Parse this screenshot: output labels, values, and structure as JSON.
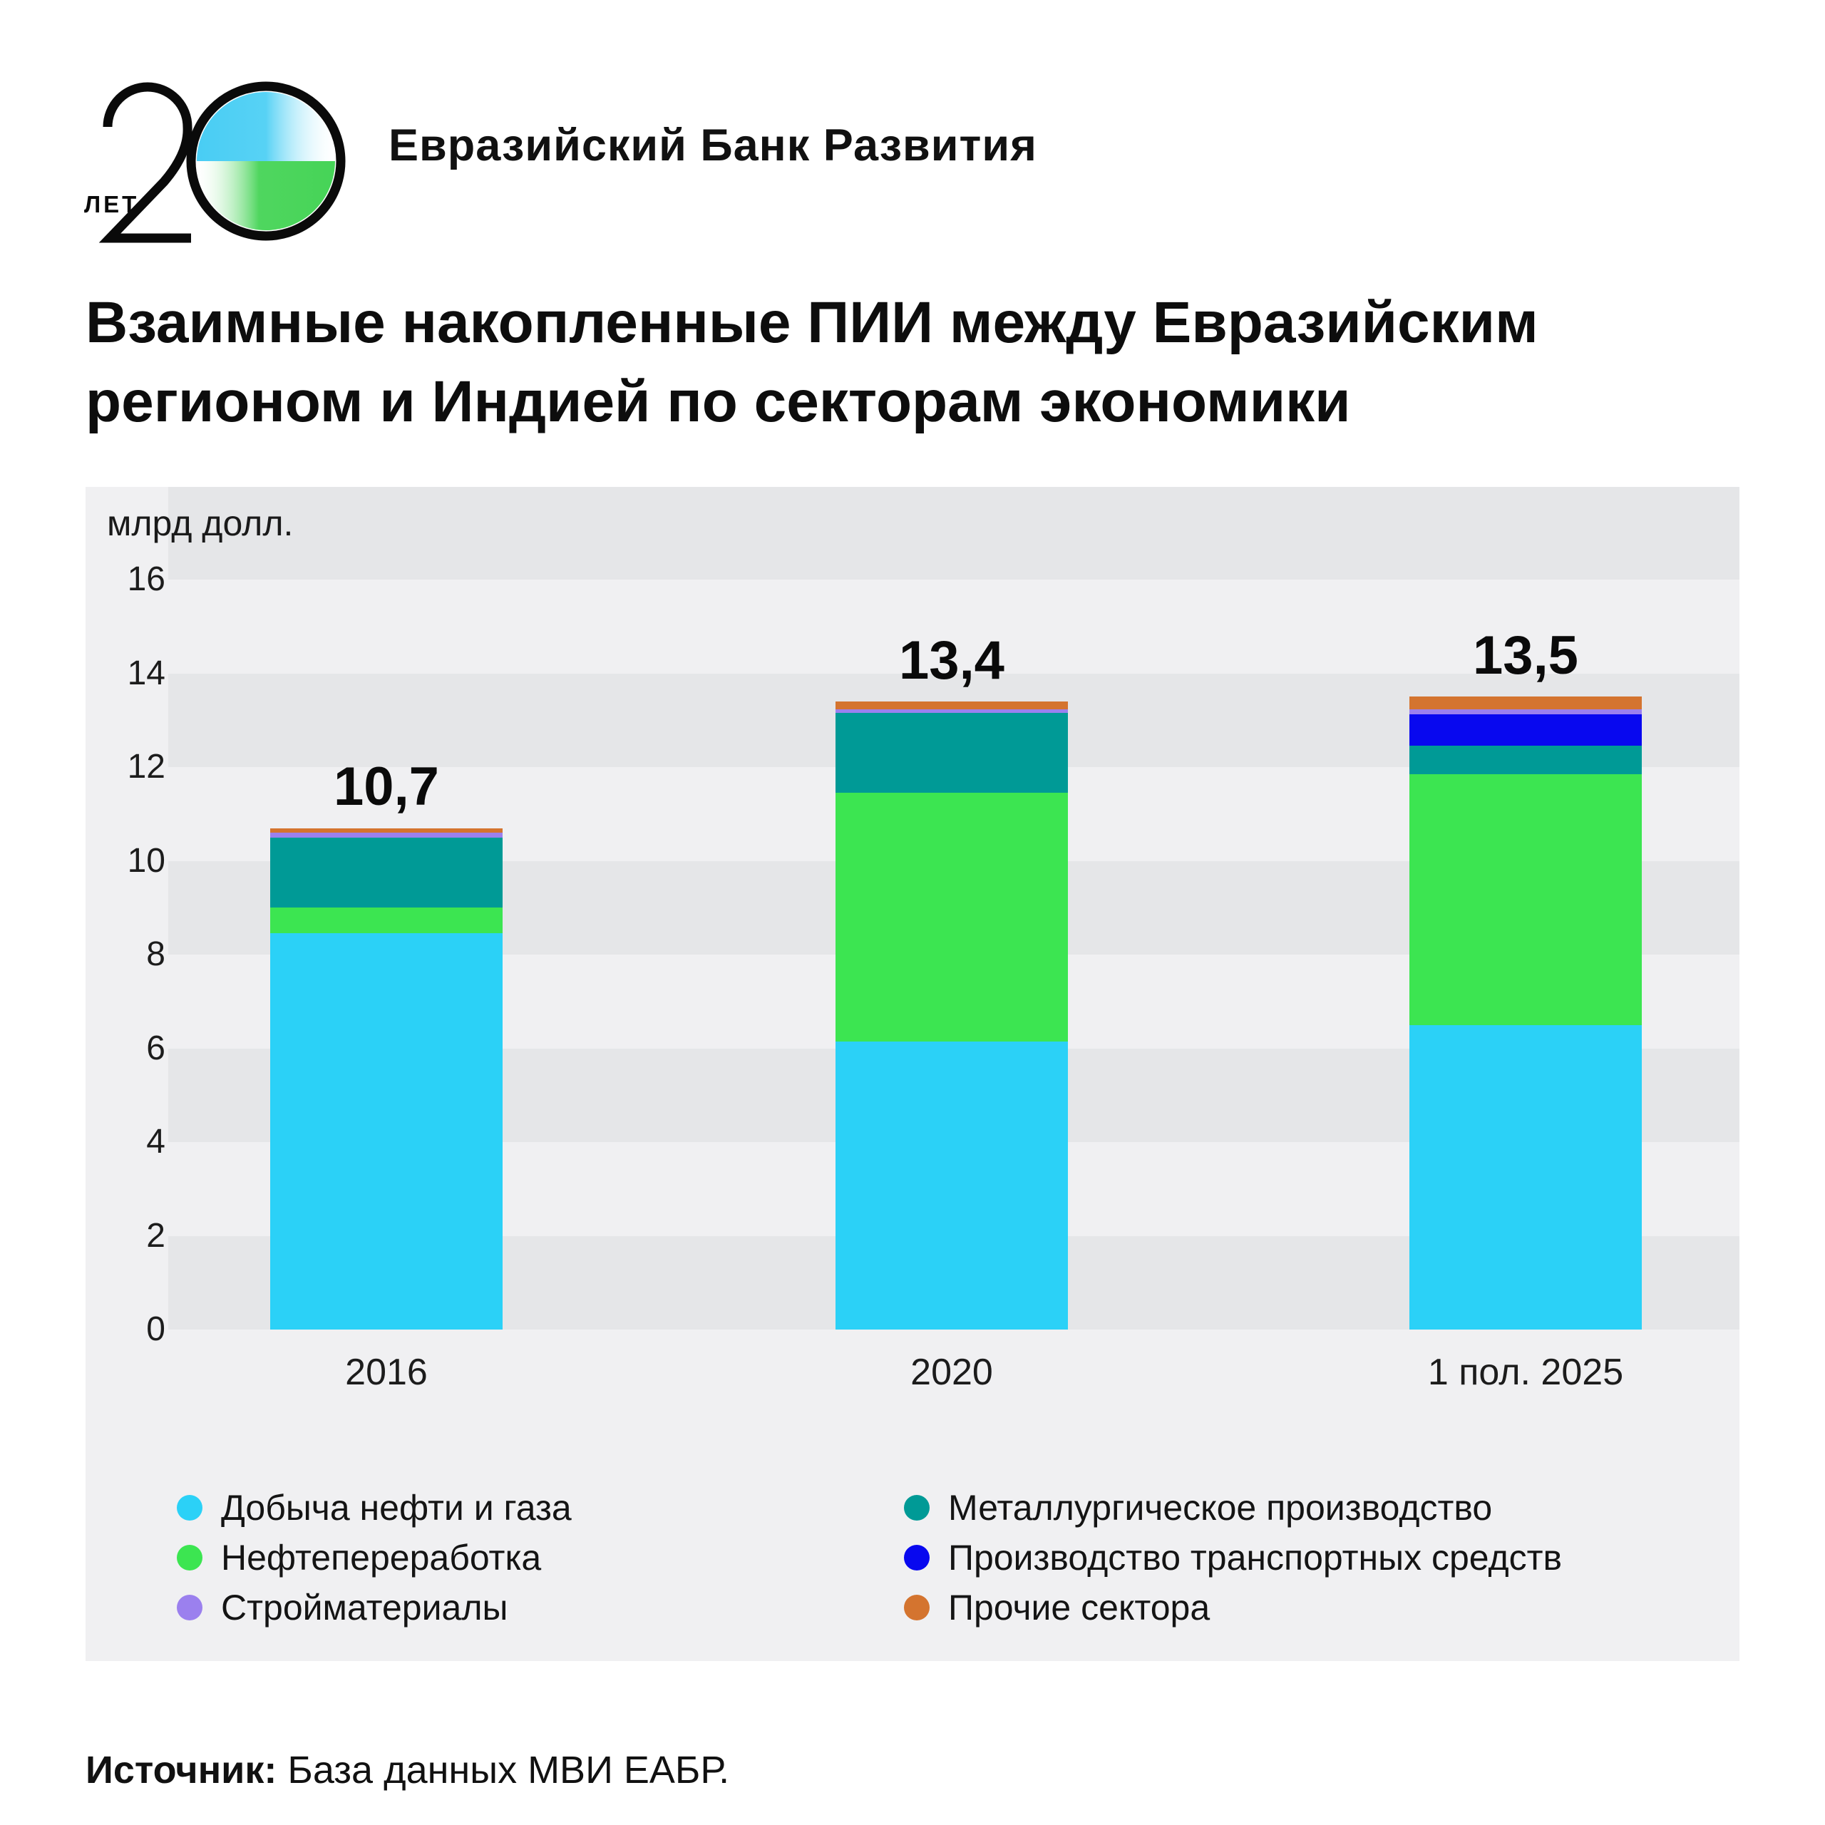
{
  "header": {
    "logo_years_label": "ЛЕТ",
    "bank_name": "Евразийский Банк Развития"
  },
  "title": {
    "line1": "Взаимные накопленные ПИИ между Евразийским",
    "line2": "регионом и Индией по секторам экономики"
  },
  "chart_data": {
    "type": "bar",
    "stacked": true,
    "title": "Взаимные накопленные ПИИ между Евразийским регионом и Индией по секторам экономики",
    "unit_label": "млрд долл.",
    "categories": [
      "2016",
      "2020",
      "1 пол. 2025"
    ],
    "totals": [
      10.7,
      13.4,
      13.5
    ],
    "totals_display": [
      "10,7",
      "13,4",
      "13,5"
    ],
    "y_ticks": [
      16,
      14,
      12,
      10,
      8,
      6,
      4,
      2,
      0
    ],
    "ylim": [
      0,
      16
    ],
    "grid": "alternating-horizontal-bands",
    "legend_position": "bottom",
    "series": [
      {
        "name": "Добыча нефти и газа",
        "color": "#2bd1f7",
        "values": [
          8.45,
          6.15,
          6.5
        ]
      },
      {
        "name": "Нефтепереработка",
        "color": "#3ce551",
        "values": [
          0.55,
          5.3,
          5.35
        ]
      },
      {
        "name": "Металлургическое производство",
        "color": "#009a96",
        "values": [
          1.5,
          1.7,
          0.6
        ]
      },
      {
        "name": "Производство транспортных средств",
        "color": "#0808ef",
        "values": [
          0,
          0,
          0.67
        ]
      },
      {
        "name": "Стройматериалы",
        "color": "#9b80ee",
        "values": [
          0.1,
          0.08,
          0.11
        ]
      },
      {
        "name": "Прочие сектора",
        "color": "#d4742f",
        "values": [
          0.1,
          0.17,
          0.27
        ]
      }
    ],
    "legend_columns": [
      [
        0,
        1,
        4
      ],
      [
        2,
        3,
        5
      ]
    ]
  },
  "source": {
    "label": "Источник:",
    "text": " База данных МВИ ЕАБР."
  },
  "logo_colors": {
    "blue": "#35c9f3",
    "green": "#46d457"
  }
}
